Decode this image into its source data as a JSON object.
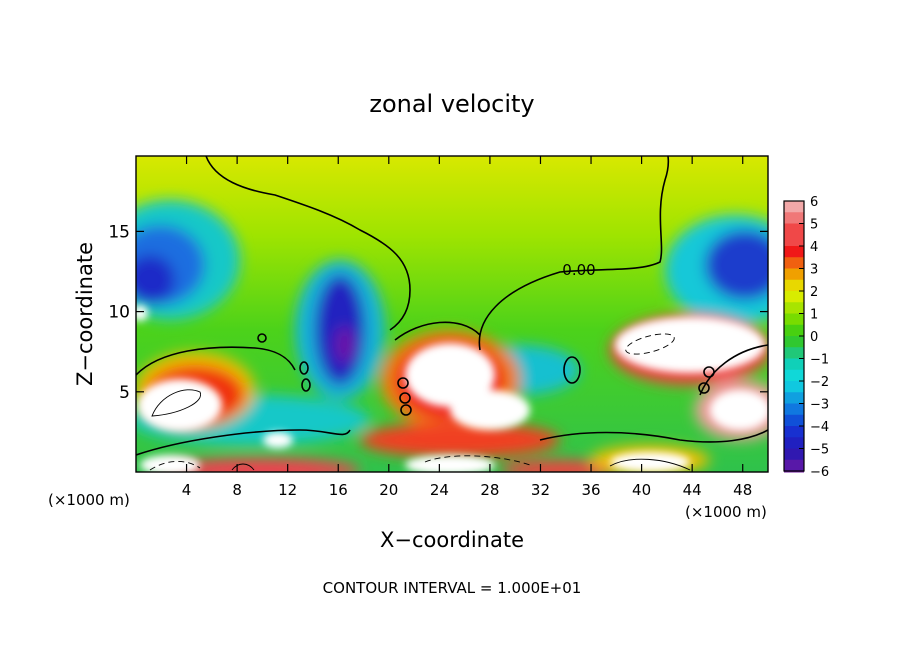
{
  "chart_data": {
    "type": "heatmap",
    "title": "zonal velocity",
    "xlabel": "X−coordinate",
    "ylabel": "Z−coordinate",
    "x_unit_left": "(×1000 m)",
    "x_unit_right": "(×1000 m)",
    "xlim": [
      0,
      50
    ],
    "ylim": [
      0,
      19.7
    ],
    "x_ticks": [
      4,
      8,
      12,
      16,
      20,
      24,
      28,
      32,
      36,
      40,
      44,
      48
    ],
    "y_ticks": [
      5,
      10,
      15
    ],
    "colorbar": {
      "ticks": [
        6,
        5,
        4,
        3,
        2,
        1,
        0,
        -1,
        -2,
        -3,
        -4,
        -5,
        -6
      ],
      "range": [
        -6,
        6
      ]
    },
    "contour_label": "0.00",
    "footer": "CONTOUR INTERVAL = 1.000E+01",
    "grid": false
  }
}
